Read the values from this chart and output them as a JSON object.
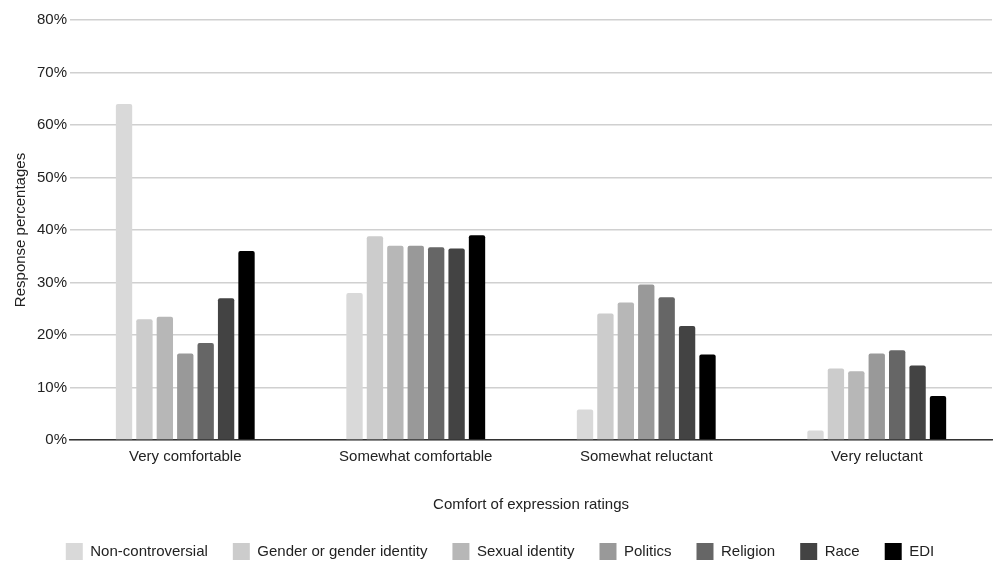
{
  "chart_data": {
    "type": "bar",
    "xlabel": "Comfort of expression ratings",
    "ylabel": "Response percentages",
    "categories": [
      "Very comfortable",
      "Somewhat comfortable",
      "Somewhat reluctant",
      "Very reluctant"
    ],
    "series": [
      {
        "name": "Non-controversial",
        "color": "#d9d9d9",
        "values": [
          64,
          28,
          5.8,
          1.8
        ]
      },
      {
        "name": "Gender or gender identity",
        "color": "#cccccc",
        "values": [
          23,
          38.8,
          24.1,
          13.6
        ]
      },
      {
        "name": "Sexual identity",
        "color": "#b7b7b7",
        "values": [
          23.5,
          37,
          26.2,
          13.1
        ]
      },
      {
        "name": "Politics",
        "color": "#999999",
        "values": [
          16.5,
          37,
          29.6,
          16.5
        ]
      },
      {
        "name": "Religion",
        "color": "#666666",
        "values": [
          18.5,
          36.7,
          27.2,
          17.1
        ]
      },
      {
        "name": "Race",
        "color": "#434343",
        "values": [
          27,
          36.5,
          21.7,
          14.2
        ]
      },
      {
        "name": "EDI",
        "color": "#000000",
        "values": [
          36,
          39,
          16.3,
          8.4
        ]
      }
    ],
    "ylim": [
      0,
      80
    ],
    "yticks": [
      {
        "value": 0,
        "label": "0%"
      },
      {
        "value": 10,
        "label": "10%"
      },
      {
        "value": 20,
        "label": "20%"
      },
      {
        "value": 30,
        "label": "30%"
      },
      {
        "value": 40,
        "label": "40%"
      },
      {
        "value": 50,
        "label": "50%"
      },
      {
        "value": 60,
        "label": "60%"
      },
      {
        "value": 70,
        "label": "70%"
      },
      {
        "value": 80,
        "label": "80%"
      }
    ],
    "grid": "y",
    "legend": "bottom"
  }
}
